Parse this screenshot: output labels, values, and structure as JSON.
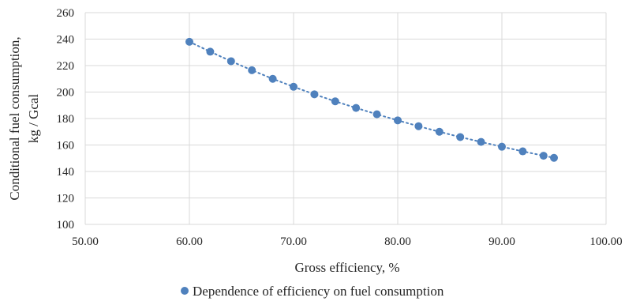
{
  "chart_data": {
    "type": "scatter",
    "xlabel": "Gross efficiency, %",
    "ylabel_lines": [
      "Conditional fuel consumption,",
      "kg / Gcal"
    ],
    "xlim": [
      50,
      100
    ],
    "ylim": [
      100,
      260
    ],
    "x_ticks": [
      50,
      60,
      70,
      80,
      90,
      100
    ],
    "x_tick_labels": [
      "50.00",
      "60.00",
      "70.00",
      "80.00",
      "90.00",
      "100.00"
    ],
    "y_ticks": [
      100,
      120,
      140,
      160,
      180,
      200,
      220,
      240,
      260
    ],
    "y_tick_labels": [
      "100",
      "120",
      "140",
      "160",
      "180",
      "200",
      "220",
      "240",
      "260"
    ],
    "grid": true,
    "legend_position": "bottom",
    "series": [
      {
        "name": "Dependence of efficiency on fuel consumption",
        "color": "#4f81bd",
        "trendline": "dotted",
        "x": [
          60,
          62,
          64,
          66,
          68,
          70,
          72,
          74,
          76,
          78,
          80,
          82,
          84,
          86,
          88,
          90,
          92,
          94,
          95
        ],
        "y": [
          238,
          230.5,
          223.3,
          216.5,
          210,
          204,
          198.3,
          193,
          188,
          183.2,
          178.6,
          174.2,
          170,
          166,
          162.3,
          158.7,
          155.2,
          151.9,
          150.3
        ]
      }
    ]
  }
}
